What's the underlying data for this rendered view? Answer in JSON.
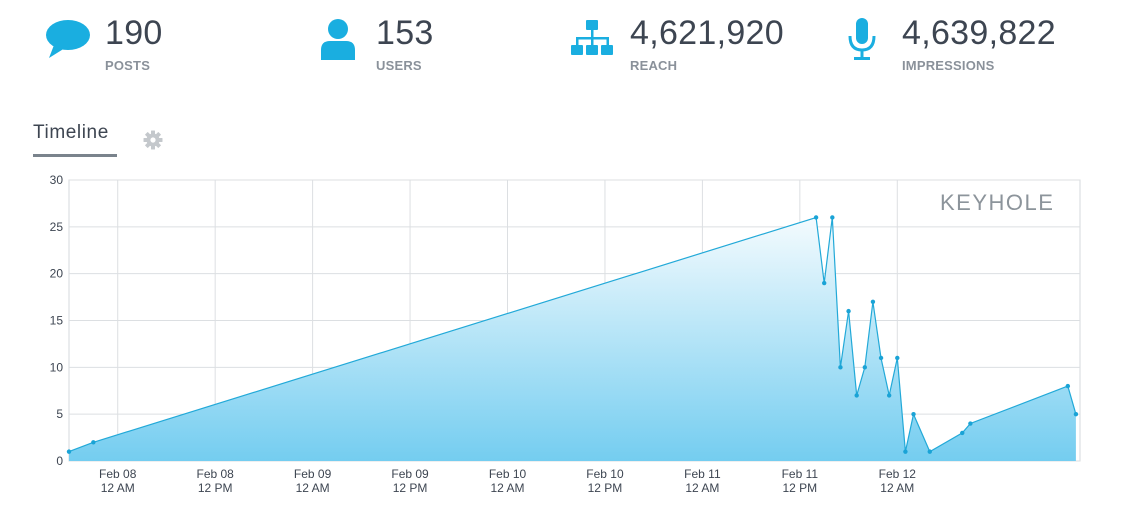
{
  "stats": [
    {
      "value": "190",
      "label": "POSTS",
      "icon": "speech-bubble-icon"
    },
    {
      "value": "153",
      "label": "USERS",
      "icon": "user-icon"
    },
    {
      "value": "4,621,920",
      "label": "REACH",
      "icon": "hierarchy-icon"
    },
    {
      "value": "4,639,822",
      "label": "IMPRESSIONS",
      "icon": "microphone-icon"
    }
  ],
  "tabs": {
    "timeline": "Timeline"
  },
  "colors": {
    "accent": "#1aaee0",
    "line": "#22a9d8",
    "text": "#3d4551",
    "label": "#8a919a"
  },
  "chart_data": {
    "type": "area",
    "watermark": "KEYHOLE",
    "ylim": [
      0,
      30
    ],
    "yticks": [
      0,
      5,
      10,
      15,
      20,
      25,
      30
    ],
    "xlim": [
      "2025-02-07 18:00",
      "2025-02-12 22:30"
    ],
    "xticks": [
      {
        "x": "2025-02-08 00:00",
        "l1": "Feb 08",
        "l2": "12 AM"
      },
      {
        "x": "2025-02-08 12:00",
        "l1": "Feb 08",
        "l2": "12 PM"
      },
      {
        "x": "2025-02-09 00:00",
        "l1": "Feb 09",
        "l2": "12 AM"
      },
      {
        "x": "2025-02-09 12:00",
        "l1": "Feb 09",
        "l2": "12 PM"
      },
      {
        "x": "2025-02-10 00:00",
        "l1": "Feb 10",
        "l2": "12 AM"
      },
      {
        "x": "2025-02-10 12:00",
        "l1": "Feb 10",
        "l2": "12 PM"
      },
      {
        "x": "2025-02-11 00:00",
        "l1": "Feb 11",
        "l2": "12 AM"
      },
      {
        "x": "2025-02-11 12:00",
        "l1": "Feb 11",
        "l2": "12 PM"
      },
      {
        "x": "2025-02-12 00:00",
        "l1": "Feb 12",
        "l2": "12 AM"
      }
    ],
    "grid": true,
    "series": [
      {
        "points": [
          [
            "2025-02-07 18:00",
            1
          ],
          [
            "2025-02-07 21:00",
            2
          ],
          [
            "2025-02-11 14:00",
            26
          ],
          [
            "2025-02-11 15:00",
            19
          ],
          [
            "2025-02-11 16:00",
            26
          ],
          [
            "2025-02-11 17:00",
            10
          ],
          [
            "2025-02-11 18:00",
            16
          ],
          [
            "2025-02-11 19:00",
            7
          ],
          [
            "2025-02-11 20:00",
            10
          ],
          [
            "2025-02-11 21:00",
            17
          ],
          [
            "2025-02-11 22:00",
            11
          ],
          [
            "2025-02-11 23:00",
            7
          ],
          [
            "2025-02-12 00:00",
            11
          ],
          [
            "2025-02-12 01:00",
            1
          ],
          [
            "2025-02-12 02:00",
            5
          ],
          [
            "2025-02-12 04:00",
            1
          ],
          [
            "2025-02-12 08:00",
            3
          ],
          [
            "2025-02-12 09:00",
            4
          ],
          [
            "2025-02-12 21:00",
            8
          ],
          [
            "2025-02-12 22:00",
            5
          ]
        ]
      }
    ]
  }
}
